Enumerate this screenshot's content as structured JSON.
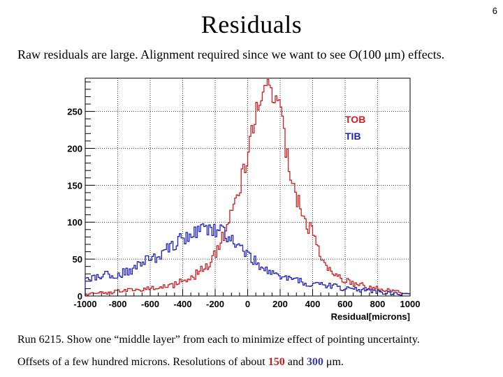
{
  "page_number": "6",
  "title": "Residuals",
  "subtitle": "Raw residuals are large. Alignment required since we want to see O(100 μm) effects.",
  "caption1": "Run 6215. Show one “middle layer” from each to minimize effect of pointing uncertainty.",
  "caption2": {
    "prefix": "Offsets of a few hundred microns. Resolutions of about ",
    "tob_value": "150",
    "middle": " and ",
    "tib_value": "300",
    "suffix": " μm."
  },
  "colors": {
    "tob": "#cc1f1f",
    "tib": "#1f1fbf",
    "tob_text": "#b32424",
    "tib_text": "#3a3aaa"
  },
  "chart_data": {
    "type": "line",
    "xlabel": "Residual[microns]",
    "ylabel": "",
    "xlim": [
      -1000,
      1000
    ],
    "ylim": [
      0,
      295
    ],
    "x_ticks": [
      -1000,
      -800,
      -600,
      -400,
      -200,
      0,
      200,
      400,
      600,
      800,
      1000
    ],
    "y_ticks": [
      0,
      50,
      100,
      150,
      200,
      250
    ],
    "grid": true,
    "legend_position": "top-right",
    "series": [
      {
        "name": "TOB",
        "color": "#cc1f1f",
        "x": [
          -1000,
          -900,
          -800,
          -700,
          -600,
          -500,
          -450,
          -400,
          -350,
          -300,
          -250,
          -200,
          -175,
          -150,
          -125,
          -100,
          -75,
          -50,
          -25,
          0,
          25,
          50,
          75,
          100,
          125,
          150,
          175,
          200,
          225,
          250,
          275,
          300,
          350,
          400,
          450,
          500,
          550,
          600,
          700,
          800,
          900,
          1000
        ],
        "values": [
          3,
          4,
          6,
          8,
          10,
          13,
          16,
          20,
          25,
          33,
          42,
          58,
          70,
          82,
          100,
          112,
          130,
          150,
          175,
          200,
          222,
          245,
          262,
          280,
          282,
          275,
          268,
          250,
          210,
          175,
          150,
          132,
          105,
          80,
          50,
          35,
          25,
          20,
          14,
          10,
          6,
          4
        ]
      },
      {
        "name": "TIB",
        "color": "#1f1fbf",
        "x": [
          -1000,
          -950,
          -900,
          -850,
          -800,
          -750,
          -700,
          -650,
          -600,
          -550,
          -500,
          -450,
          -400,
          -350,
          -300,
          -250,
          -200,
          -150,
          -100,
          -50,
          0,
          50,
          100,
          150,
          200,
          250,
          300,
          350,
          400,
          450,
          500,
          550,
          600,
          700,
          800,
          900,
          1000
        ],
        "values": [
          20,
          25,
          28,
          30,
          30,
          32,
          38,
          45,
          50,
          55,
          65,
          72,
          78,
          82,
          88,
          92,
          90,
          85,
          78,
          65,
          55,
          45,
          38,
          30,
          25,
          23,
          20,
          18,
          15,
          15,
          14,
          12,
          10,
          8,
          6,
          3,
          2
        ]
      }
    ]
  }
}
